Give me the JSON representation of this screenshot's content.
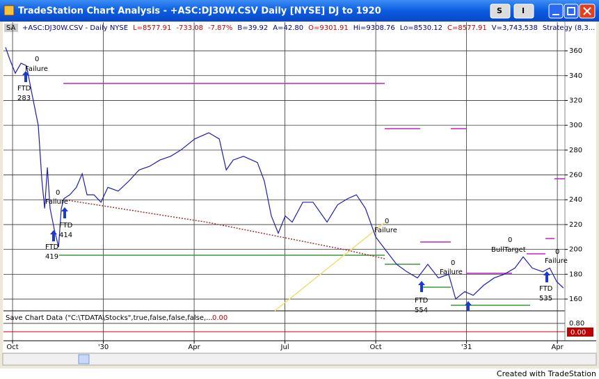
{
  "window": {
    "title": "TradeStation Chart Analysis - +ASC:DJ30W.CSV  Daily  [NYSE] DJ to 1920",
    "buttons": [
      "S",
      "I"
    ]
  },
  "status": {
    "tag": "SA",
    "items": [
      {
        "text": "+ASC:DJ30W.CSV - Daily  NYSE",
        "color": "#000080"
      },
      {
        "text": "L=8577.91",
        "color": "#c00000"
      },
      {
        "text": "-733.08",
        "color": "#c00000"
      },
      {
        "text": "-7.87%",
        "color": "#c00000"
      },
      {
        "text": "B=39.92",
        "color": "#000080"
      },
      {
        "text": "A=42.80",
        "color": "#000080"
      },
      {
        "text": "O=9301.91",
        "color": "#c00000"
      },
      {
        "text": "Hi=9308.76",
        "color": "#000080"
      },
      {
        "text": "Lo=8530.12",
        "color": "#000080"
      },
      {
        "text": "C=8577.91",
        "color": "#c00000"
      },
      {
        "text": "V=3,743,538",
        "color": "#000080"
      },
      {
        "text": "Strategy (8,3...",
        "color": "#000080"
      }
    ]
  },
  "chart_data": {
    "type": "line",
    "x": [
      -0.23,
      -0.09,
      0.09,
      0.28,
      0.46,
      0.62,
      0.85,
      0.97,
      1.06,
      1.15,
      1.24,
      1.38,
      1.52,
      1.61,
      1.7,
      1.89,
      2.11,
      2.3,
      2.46,
      2.69,
      2.92,
      3.15,
      3.49,
      3.84,
      4.18,
      4.53,
      4.87,
      5.22,
      5.56,
      6.02,
      6.48,
      6.83,
      7.06,
      7.29,
      7.63,
      8.09,
      8.32,
      8.55,
      8.78,
      9.01,
      9.24,
      9.59,
      9.93,
      10.39,
      10.74,
      11.08,
      11.36,
      11.66,
      12.0,
      12.34,
      12.69,
      13.03,
      13.38,
      13.72,
      14.07,
      14.41,
      14.64,
      14.94,
      15.22,
      15.56,
      15.91,
      16.25,
      16.6,
      16.87,
      17.17,
      17.52,
      17.75,
      17.98,
      18.2
    ],
    "series": [
      {
        "name": "DJ30W",
        "color": "#1c1cb4",
        "values": [
          362.8,
          353,
          342,
          350,
          348,
          328,
          300,
          255,
          233,
          266,
          233,
          216,
          202,
          233,
          241,
          244,
          250,
          261,
          244,
          244,
          238,
          250,
          247,
          255,
          264,
          267,
          272,
          275,
          280,
          289,
          294,
          289,
          264,
          272,
          275,
          270,
          255,
          227,
          213,
          227,
          222,
          238,
          238,
          222,
          236,
          241,
          244,
          233,
          210,
          199,
          188,
          182,
          177,
          188,
          177,
          180,
          160,
          166,
          163,
          171,
          177,
          180,
          185,
          194,
          185,
          182,
          185,
          174,
          169
        ]
      }
    ],
    "xlim": [
      -0.3,
      18.25
    ],
    "ylim": [
      150.5,
      383
    ],
    "xticks": [
      {
        "value": 0,
        "label": "Oct"
      },
      {
        "value": 3,
        "label": "'30"
      },
      {
        "value": 6,
        "label": "Apr"
      },
      {
        "value": 9,
        "label": "Jul"
      },
      {
        "value": 12,
        "label": "Oct"
      },
      {
        "value": 15,
        "label": "'31"
      },
      {
        "value": 18,
        "label": "Apr"
      }
    ],
    "yticks": [
      160,
      180,
      200,
      220,
      240,
      260,
      280,
      300,
      320,
      340,
      360
    ],
    "grid": true,
    "annotations": [
      "0",
      "Failure",
      "FTD",
      "283",
      "0",
      "Failure",
      "FTD",
      "414",
      "FTD",
      "419",
      "0",
      "Failure",
      "FTD",
      "554",
      "0",
      "Failure",
      "0",
      "BullTarget",
      "0",
      "Failure",
      "FTD",
      "535"
    ]
  },
  "indicator": {
    "text": "Save Chart Data (\"C:\\TDATA\\Stocks\",true,false,false,false,...",
    "value": "0.00",
    "axis_top": "0.80",
    "axis_bottom": "0.00"
  },
  "footer": "Created with TradeStation"
}
